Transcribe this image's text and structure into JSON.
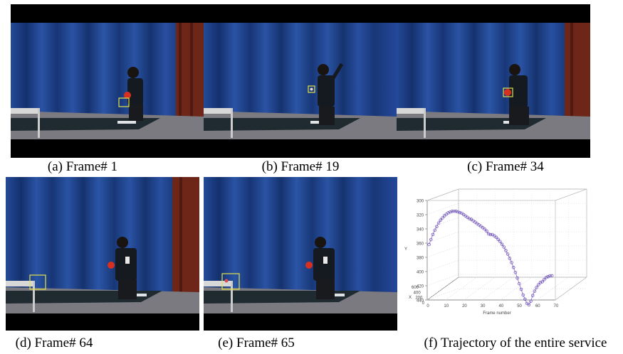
{
  "figure": {
    "frames": [
      {
        "id": "a",
        "caption": "(a) Frame# 1",
        "scene": "serve-toss"
      },
      {
        "id": "b",
        "caption": "(b) Frame# 19",
        "scene": "ball-high"
      },
      {
        "id": "c",
        "caption": "(c) Frame# 34",
        "scene": "hitting"
      },
      {
        "id": "d",
        "caption": "(d) Frame# 64",
        "scene": "ball-net"
      },
      {
        "id": "e",
        "caption": "(e) Frame# 65",
        "scene": "ball-net"
      }
    ],
    "trajectory_caption": "(f) Trajectory of the entire service",
    "colors": {
      "curtain": "#1d3f8a",
      "curtain_dark": "#0f2558",
      "side_curtain": "#7a2a1a",
      "table": "#1e2a2e",
      "tracker_box": "#e2e24a",
      "marker": "#7a5cc0"
    }
  },
  "chart_data": {
    "type": "scatter",
    "projection": "3d",
    "x_label": "Frame number",
    "x_ticks": [
      "0",
      "10",
      "20",
      "30",
      "40",
      "50",
      "60",
      "70"
    ],
    "y_label": "Y",
    "y_ticks": [
      "300",
      "320",
      "340",
      "360",
      "380",
      "400",
      "420",
      "440"
    ],
    "z_label": "X",
    "z_ticks": [
      "0",
      "200",
      "400",
      "600"
    ],
    "grid": true,
    "frames": [
      1,
      2,
      3,
      4,
      5,
      6,
      7,
      8,
      9,
      10,
      11,
      12,
      13,
      14,
      15,
      16,
      17,
      18,
      19,
      20,
      21,
      22,
      23,
      24,
      25,
      26,
      27,
      28,
      29,
      30,
      31,
      32,
      33,
      34,
      35,
      36,
      37,
      38,
      39,
      40,
      41,
      42,
      43,
      44,
      45,
      46,
      47,
      48,
      49,
      50,
      51,
      52,
      53,
      54,
      55,
      56,
      57,
      58,
      59,
      60,
      61,
      62,
      63,
      64,
      65
    ],
    "y_values": [
      362,
      355,
      348,
      342,
      337,
      332,
      328,
      325,
      322,
      320,
      318,
      317,
      316,
      316,
      316,
      317,
      318,
      319,
      321,
      323,
      325,
      327,
      328,
      330,
      332,
      334,
      336,
      338,
      340,
      342,
      345,
      349,
      350,
      350,
      352,
      354,
      357,
      360,
      364,
      368,
      373,
      378,
      384,
      390,
      397,
      404,
      412,
      420,
      428,
      436,
      442,
      448,
      450,
      445,
      437,
      431,
      426,
      422,
      419,
      418,
      415,
      412,
      411,
      410,
      410
    ]
  }
}
